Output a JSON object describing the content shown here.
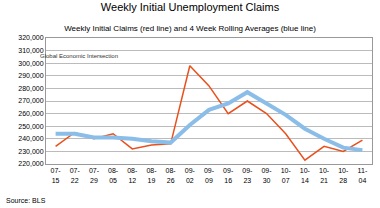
{
  "chart_data": {
    "type": "line",
    "title": "Weekly Initial Unemployment Claims",
    "subtitle": "Weekly Initial Claims (red line) and 4 Week Rolling Averages (blue line)",
    "source": "Source: BLS",
    "annotations": [
      "Global Economic Intersection"
    ],
    "categories": [
      "07-15",
      "07-22",
      "07-29",
      "08-05",
      "08-12",
      "08-19",
      "08-26",
      "09-02",
      "09-09",
      "09-16",
      "09-23",
      "09-30",
      "10-07",
      "10-14",
      "10-21",
      "10-28",
      "11-04"
    ],
    "series": [
      {
        "color": "#e8501c",
        "line_style": "solid",
        "values": [
          234000,
          245000,
          240000,
          244000,
          232000,
          235000,
          236000,
          298000,
          282000,
          260000,
          270000,
          260000,
          244000,
          223000,
          234000,
          230000,
          239000
        ]
      },
      {
        "color": "#8bbde9",
        "line_style": "solid",
        "values": [
          244000,
          244000,
          241000,
          241000,
          240000,
          238000,
          237000,
          251000,
          263000,
          268000,
          277000,
          268000,
          259000,
          248000,
          240000,
          233000,
          231000
        ]
      }
    ],
    "ylim": [
      220000,
      320000
    ],
    "yticks": [
      {
        "value": 220000,
        "label": "220,000"
      },
      {
        "value": 230000,
        "label": "230,000"
      },
      {
        "value": 240000,
        "label": "240,000"
      },
      {
        "value": 250000,
        "label": "250,000"
      },
      {
        "value": 260000,
        "label": "260,000"
      },
      {
        "value": 270000,
        "label": "270,000"
      },
      {
        "value": 280000,
        "label": "280,000"
      },
      {
        "value": 290000,
        "label": "290,000"
      },
      {
        "value": 300000,
        "label": "300,000"
      },
      {
        "value": 310000,
        "label": "310,000"
      },
      {
        "value": 320000,
        "label": "320,000"
      }
    ],
    "grid": true
  }
}
